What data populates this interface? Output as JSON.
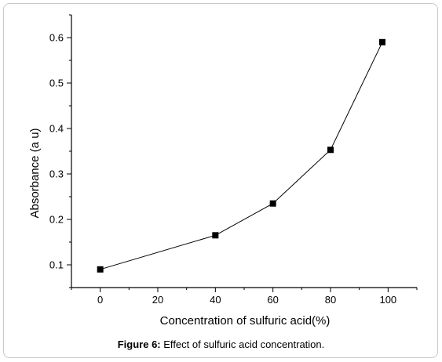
{
  "caption": {
    "label": "Figure 6:",
    "text": "Effect of sulfuric acid concentration."
  },
  "chart_data": {
    "type": "line",
    "xlabel": "Concentration of sulfuric acid(%)",
    "ylabel": "Absorbance (a u)",
    "xlim": [
      -10,
      110
    ],
    "ylim": [
      0.05,
      0.65
    ],
    "xticks": [
      0,
      20,
      40,
      60,
      80,
      100
    ],
    "yticks": [
      0.1,
      0.2,
      0.3,
      0.4,
      0.5,
      0.6
    ],
    "grid": false,
    "series": [
      {
        "x": [
          0,
          40,
          60,
          80,
          98
        ],
        "y": [
          0.09,
          0.165,
          0.235,
          0.353,
          0.59
        ],
        "marker": "square",
        "color": "#000000"
      }
    ]
  }
}
